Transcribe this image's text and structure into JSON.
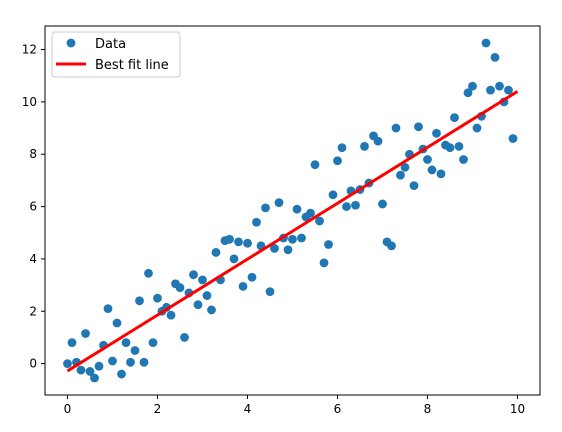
{
  "chart_data": {
    "type": "scatter",
    "title": "",
    "xlabel": "",
    "ylabel": "",
    "xlim": [
      -0.5,
      10.5
    ],
    "ylim": [
      -1.2,
      12.9
    ],
    "xticks": [
      0,
      2,
      4,
      6,
      8,
      10
    ],
    "yticks": [
      0,
      2,
      4,
      6,
      8,
      10,
      12
    ],
    "grid": false,
    "legend_position": "upper-left",
    "series": [
      {
        "name": "Data",
        "kind": "scatter",
        "color": "#1f77b4",
        "points": [
          [
            0.0,
            0.0
          ],
          [
            0.1,
            0.8
          ],
          [
            0.2,
            0.05
          ],
          [
            0.3,
            -0.25
          ],
          [
            0.4,
            1.15
          ],
          [
            0.5,
            -0.3
          ],
          [
            0.6,
            -0.55
          ],
          [
            0.7,
            -0.1
          ],
          [
            0.8,
            0.7
          ],
          [
            0.9,
            2.1
          ],
          [
            1.0,
            0.1
          ],
          [
            1.1,
            1.55
          ],
          [
            1.2,
            -0.4
          ],
          [
            1.3,
            0.8
          ],
          [
            1.4,
            0.05
          ],
          [
            1.5,
            0.5
          ],
          [
            1.6,
            2.4
          ],
          [
            1.7,
            0.05
          ],
          [
            1.8,
            3.45
          ],
          [
            1.9,
            0.8
          ],
          [
            2.0,
            2.5
          ],
          [
            2.1,
            2.0
          ],
          [
            2.2,
            2.15
          ],
          [
            2.3,
            1.85
          ],
          [
            2.4,
            3.05
          ],
          [
            2.5,
            2.9
          ],
          [
            2.6,
            1.0
          ],
          [
            2.7,
            2.7
          ],
          [
            2.8,
            3.4
          ],
          [
            2.9,
            2.25
          ],
          [
            3.0,
            3.2
          ],
          [
            3.1,
            2.6
          ],
          [
            3.2,
            2.05
          ],
          [
            3.3,
            4.25
          ],
          [
            3.4,
            3.2
          ],
          [
            3.5,
            4.7
          ],
          [
            3.6,
            4.75
          ],
          [
            3.7,
            4.0
          ],
          [
            3.8,
            4.65
          ],
          [
            3.9,
            2.95
          ],
          [
            4.0,
            4.6
          ],
          [
            4.1,
            3.3
          ],
          [
            4.2,
            5.4
          ],
          [
            4.3,
            4.5
          ],
          [
            4.4,
            5.95
          ],
          [
            4.5,
            2.75
          ],
          [
            4.6,
            4.4
          ],
          [
            4.7,
            6.15
          ],
          [
            4.8,
            4.8
          ],
          [
            4.9,
            4.35
          ],
          [
            5.0,
            4.75
          ],
          [
            5.1,
            5.9
          ],
          [
            5.2,
            4.8
          ],
          [
            5.3,
            5.6
          ],
          [
            5.4,
            5.75
          ],
          [
            5.5,
            7.6
          ],
          [
            5.6,
            5.45
          ],
          [
            5.7,
            3.85
          ],
          [
            5.8,
            4.55
          ],
          [
            5.9,
            6.45
          ],
          [
            6.0,
            7.75
          ],
          [
            6.1,
            8.25
          ],
          [
            6.2,
            6.0
          ],
          [
            6.3,
            6.6
          ],
          [
            6.4,
            6.05
          ],
          [
            6.5,
            6.65
          ],
          [
            6.6,
            8.3
          ],
          [
            6.7,
            6.9
          ],
          [
            6.8,
            8.7
          ],
          [
            6.9,
            8.5
          ],
          [
            7.0,
            6.1
          ],
          [
            7.1,
            4.65
          ],
          [
            7.2,
            4.5
          ],
          [
            7.3,
            9.0
          ],
          [
            7.4,
            7.2
          ],
          [
            7.5,
            7.5
          ],
          [
            7.6,
            8.0
          ],
          [
            7.7,
            6.8
          ],
          [
            7.8,
            9.05
          ],
          [
            7.9,
            8.2
          ],
          [
            8.0,
            7.8
          ],
          [
            8.1,
            7.4
          ],
          [
            8.2,
            8.8
          ],
          [
            8.3,
            7.25
          ],
          [
            8.4,
            8.35
          ],
          [
            8.5,
            8.25
          ],
          [
            8.6,
            9.4
          ],
          [
            8.7,
            8.3
          ],
          [
            8.8,
            7.8
          ],
          [
            8.9,
            10.35
          ],
          [
            9.0,
            10.6
          ],
          [
            9.1,
            9.0
          ],
          [
            9.2,
            9.45
          ],
          [
            9.3,
            12.25
          ],
          [
            9.4,
            10.45
          ],
          [
            9.5,
            11.7
          ],
          [
            9.6,
            10.6
          ],
          [
            9.7,
            10.0
          ],
          [
            9.8,
            10.45
          ],
          [
            9.9,
            8.6
          ]
        ]
      },
      {
        "name": "Best fit line",
        "kind": "line",
        "color": "#ff0000",
        "points": [
          [
            0.0,
            -0.28
          ],
          [
            10.0,
            10.4
          ]
        ]
      }
    ]
  }
}
